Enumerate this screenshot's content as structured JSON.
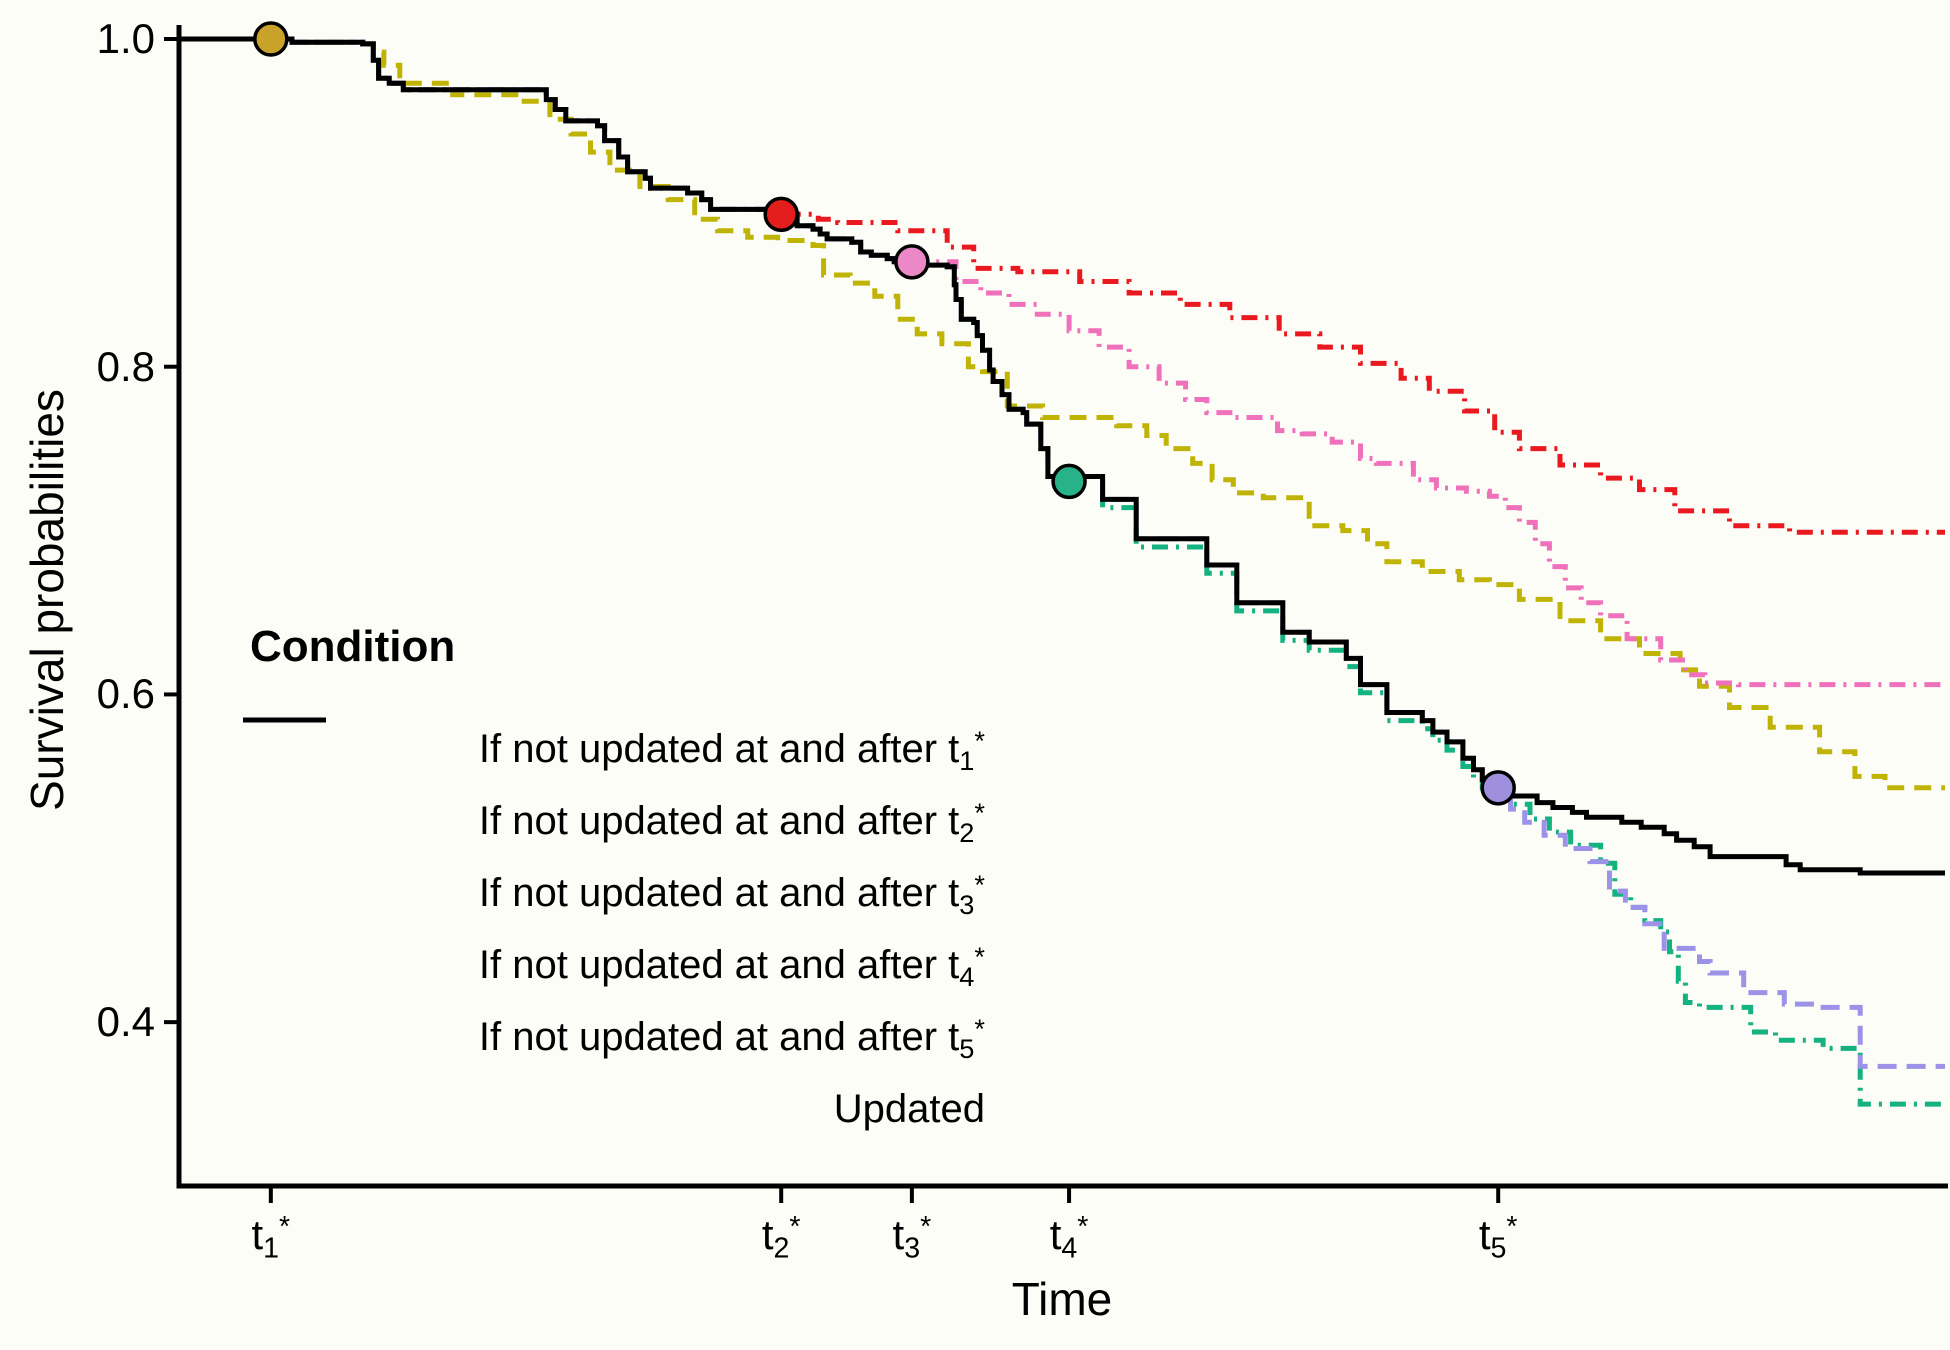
{
  "figure": {
    "background": "#fdfdf8",
    "text_color": "#000000"
  },
  "chart_data": {
    "type": "line",
    "subtype": "step-after-survival",
    "title": "",
    "xlabel": "Time",
    "ylabel": "Survival probabilities",
    "xlim": [
      0,
      1
    ],
    "ylim": [
      0.3,
      1.0
    ],
    "grid": false,
    "legend_position": "inside-left",
    "yticks": [
      {
        "value": 1.0,
        "label": "1.0"
      },
      {
        "value": 0.8,
        "label": "0.8"
      },
      {
        "value": 0.6,
        "label": "0.6"
      },
      {
        "value": 0.4,
        "label": "0.4"
      }
    ],
    "xticks": [
      {
        "x": 0.052,
        "base": "t",
        "sub": "1",
        "sup": "*"
      },
      {
        "x": 0.341,
        "base": "t",
        "sub": "2",
        "sup": "*"
      },
      {
        "x": 0.415,
        "base": "t",
        "sub": "3",
        "sup": "*"
      },
      {
        "x": 0.504,
        "base": "t",
        "sub": "4",
        "sup": "*"
      },
      {
        "x": 0.747,
        "base": "t",
        "sub": "5",
        "sup": "*"
      }
    ],
    "series": [
      {
        "name": "updated",
        "label": "Updated",
        "color": "#000000",
        "style": "solid",
        "z": 6,
        "points": [
          [
            0.0,
            1.0
          ],
          [
            0.064,
            0.998
          ],
          [
            0.104,
            0.997
          ],
          [
            0.11,
            0.987
          ],
          [
            0.113,
            0.976
          ],
          [
            0.119,
            0.973
          ],
          [
            0.127,
            0.969
          ],
          [
            0.208,
            0.963
          ],
          [
            0.213,
            0.957
          ],
          [
            0.219,
            0.95
          ],
          [
            0.237,
            0.947
          ],
          [
            0.241,
            0.938
          ],
          [
            0.249,
            0.928
          ],
          [
            0.254,
            0.919
          ],
          [
            0.264,
            0.915
          ],
          [
            0.267,
            0.909
          ],
          [
            0.288,
            0.906
          ],
          [
            0.296,
            0.902
          ],
          [
            0.301,
            0.896
          ],
          [
            0.335,
            0.893
          ],
          [
            0.35,
            0.886
          ],
          [
            0.359,
            0.884
          ],
          [
            0.363,
            0.881
          ],
          [
            0.367,
            0.878
          ],
          [
            0.381,
            0.876
          ],
          [
            0.386,
            0.87
          ],
          [
            0.392,
            0.868
          ],
          [
            0.401,
            0.866
          ],
          [
            0.405,
            0.864
          ],
          [
            0.421,
            0.862
          ],
          [
            0.435,
            0.861
          ],
          [
            0.439,
            0.85
          ],
          [
            0.44,
            0.841
          ],
          [
            0.443,
            0.829
          ],
          [
            0.45,
            0.827
          ],
          [
            0.452,
            0.819
          ],
          [
            0.455,
            0.81
          ],
          [
            0.459,
            0.798
          ],
          [
            0.461,
            0.791
          ],
          [
            0.466,
            0.783
          ],
          [
            0.47,
            0.774
          ],
          [
            0.478,
            0.772
          ],
          [
            0.48,
            0.765
          ],
          [
            0.488,
            0.75
          ],
          [
            0.492,
            0.733
          ],
          [
            0.523,
            0.719
          ],
          [
            0.542,
            0.695
          ],
          [
            0.582,
            0.679
          ],
          [
            0.599,
            0.656
          ],
          [
            0.625,
            0.638
          ],
          [
            0.64,
            0.632
          ],
          [
            0.661,
            0.622
          ],
          [
            0.669,
            0.606
          ],
          [
            0.684,
            0.589
          ],
          [
            0.704,
            0.584
          ],
          [
            0.71,
            0.577
          ],
          [
            0.718,
            0.571
          ],
          [
            0.727,
            0.561
          ],
          [
            0.733,
            0.554
          ],
          [
            0.738,
            0.548
          ],
          [
            0.745,
            0.543
          ],
          [
            0.754,
            0.538
          ],
          [
            0.769,
            0.534
          ],
          [
            0.778,
            0.531
          ],
          [
            0.789,
            0.528
          ],
          [
            0.797,
            0.525
          ],
          [
            0.817,
            0.522
          ],
          [
            0.828,
            0.519
          ],
          [
            0.841,
            0.515
          ],
          [
            0.848,
            0.511
          ],
          [
            0.858,
            0.507
          ],
          [
            0.867,
            0.501
          ],
          [
            0.91,
            0.496
          ],
          [
            0.918,
            0.493
          ],
          [
            0.952,
            0.491
          ],
          [
            1.0,
            0.491
          ]
        ]
      },
      {
        "name": "not_after_t1",
        "label_pre": "If not updated at and after t",
        "label_sub": "1",
        "label_sup": "*",
        "color": "#bfb304",
        "style": "dashed",
        "z": 1,
        "follow": "updated",
        "until": 0.108,
        "points": [
          [
            0.11,
            0.992
          ],
          [
            0.116,
            0.984
          ],
          [
            0.125,
            0.973
          ],
          [
            0.155,
            0.966
          ],
          [
            0.193,
            0.962
          ],
          [
            0.21,
            0.951
          ],
          [
            0.222,
            0.942
          ],
          [
            0.233,
            0.931
          ],
          [
            0.244,
            0.92
          ],
          [
            0.261,
            0.91
          ],
          [
            0.277,
            0.902
          ],
          [
            0.292,
            0.89
          ],
          [
            0.305,
            0.883
          ],
          [
            0.322,
            0.879
          ],
          [
            0.339,
            0.877
          ],
          [
            0.359,
            0.874
          ],
          [
            0.365,
            0.856
          ],
          [
            0.38,
            0.851
          ],
          [
            0.394,
            0.843
          ],
          [
            0.407,
            0.829
          ],
          [
            0.418,
            0.82
          ],
          [
            0.432,
            0.814
          ],
          [
            0.447,
            0.8
          ],
          [
            0.455,
            0.797
          ],
          [
            0.469,
            0.776
          ],
          [
            0.489,
            0.769
          ],
          [
            0.531,
            0.764
          ],
          [
            0.548,
            0.758
          ],
          [
            0.559,
            0.75
          ],
          [
            0.574,
            0.741
          ],
          [
            0.585,
            0.731
          ],
          [
            0.597,
            0.723
          ],
          [
            0.614,
            0.72
          ],
          [
            0.64,
            0.703
          ],
          [
            0.659,
            0.7
          ],
          [
            0.673,
            0.692
          ],
          [
            0.684,
            0.681
          ],
          [
            0.704,
            0.675
          ],
          [
            0.725,
            0.67
          ],
          [
            0.742,
            0.667
          ],
          [
            0.759,
            0.658
          ],
          [
            0.782,
            0.645
          ],
          [
            0.805,
            0.634
          ],
          [
            0.827,
            0.625
          ],
          [
            0.85,
            0.615
          ],
          [
            0.861,
            0.605
          ],
          [
            0.878,
            0.592
          ],
          [
            0.901,
            0.58
          ],
          [
            0.929,
            0.565
          ],
          [
            0.949,
            0.55
          ],
          [
            0.966,
            0.543
          ],
          [
            1.0,
            0.543
          ]
        ]
      },
      {
        "name": "not_after_t2",
        "label_pre": "If not updated at and after t",
        "label_sub": "2",
        "label_sup": "*",
        "color": "#e9191f",
        "style": "dotdash",
        "z": 2,
        "follow": "updated",
        "until": 0.345,
        "points": [
          [
            0.362,
            0.89
          ],
          [
            0.373,
            0.888
          ],
          [
            0.407,
            0.883
          ],
          [
            0.435,
            0.873
          ],
          [
            0.45,
            0.86
          ],
          [
            0.475,
            0.858
          ],
          [
            0.51,
            0.852
          ],
          [
            0.538,
            0.845
          ],
          [
            0.567,
            0.838
          ],
          [
            0.595,
            0.83
          ],
          [
            0.623,
            0.82
          ],
          [
            0.646,
            0.812
          ],
          [
            0.669,
            0.802
          ],
          [
            0.692,
            0.793
          ],
          [
            0.708,
            0.785
          ],
          [
            0.728,
            0.773
          ],
          [
            0.745,
            0.76
          ],
          [
            0.759,
            0.75
          ],
          [
            0.782,
            0.74
          ],
          [
            0.805,
            0.732
          ],
          [
            0.827,
            0.725
          ],
          [
            0.847,
            0.712
          ],
          [
            0.878,
            0.703
          ],
          [
            0.912,
            0.699
          ],
          [
            1.0,
            0.699
          ]
        ]
      },
      {
        "name": "not_after_t3",
        "label_pre": "If not updated at and after t",
        "label_sub": "3",
        "label_sup": "*",
        "color": "#ef70bb",
        "style": "dotdash",
        "z": 3,
        "follow": "updated",
        "until": 0.418,
        "points": [
          [
            0.44,
            0.852
          ],
          [
            0.454,
            0.845
          ],
          [
            0.47,
            0.838
          ],
          [
            0.486,
            0.832
          ],
          [
            0.504,
            0.822
          ],
          [
            0.521,
            0.812
          ],
          [
            0.538,
            0.8
          ],
          [
            0.555,
            0.79
          ],
          [
            0.57,
            0.78
          ],
          [
            0.582,
            0.772
          ],
          [
            0.597,
            0.769
          ],
          [
            0.622,
            0.761
          ],
          [
            0.636,
            0.759
          ],
          [
            0.653,
            0.754
          ],
          [
            0.669,
            0.744
          ],
          [
            0.678,
            0.741
          ],
          [
            0.699,
            0.731
          ],
          [
            0.712,
            0.726
          ],
          [
            0.729,
            0.724
          ],
          [
            0.742,
            0.721
          ],
          [
            0.751,
            0.714
          ],
          [
            0.759,
            0.705
          ],
          [
            0.768,
            0.692
          ],
          [
            0.776,
            0.678
          ],
          [
            0.785,
            0.665
          ],
          [
            0.794,
            0.656
          ],
          [
            0.805,
            0.648
          ],
          [
            0.82,
            0.634
          ],
          [
            0.839,
            0.621
          ],
          [
            0.853,
            0.612
          ],
          [
            0.864,
            0.607
          ],
          [
            0.883,
            0.606
          ],
          [
            1.0,
            0.606
          ]
        ]
      },
      {
        "name": "not_after_t4",
        "label_pre": "If not updated at and after t",
        "label_sub": "4",
        "label_sup": "*",
        "color": "#14b181",
        "style": "dotdash",
        "z": 4,
        "follow": "updated",
        "until": 0.508,
        "points": [
          [
            0.523,
            0.714
          ],
          [
            0.542,
            0.69
          ],
          [
            0.582,
            0.674
          ],
          [
            0.599,
            0.651
          ],
          [
            0.625,
            0.633
          ],
          [
            0.64,
            0.627
          ],
          [
            0.661,
            0.617
          ],
          [
            0.669,
            0.601
          ],
          [
            0.684,
            0.584
          ],
          [
            0.704,
            0.579
          ],
          [
            0.71,
            0.572
          ],
          [
            0.718,
            0.566
          ],
          [
            0.727,
            0.556
          ],
          [
            0.733,
            0.549
          ],
          [
            0.738,
            0.543
          ],
          [
            0.747,
            0.538
          ],
          [
            0.754,
            0.533
          ],
          [
            0.765,
            0.524
          ],
          [
            0.776,
            0.516
          ],
          [
            0.788,
            0.508
          ],
          [
            0.805,
            0.497
          ],
          [
            0.813,
            0.478
          ],
          [
            0.822,
            0.47
          ],
          [
            0.83,
            0.462
          ],
          [
            0.839,
            0.455
          ],
          [
            0.844,
            0.443
          ],
          [
            0.849,
            0.425
          ],
          [
            0.853,
            0.412
          ],
          [
            0.861,
            0.409
          ],
          [
            0.89,
            0.394
          ],
          [
            0.904,
            0.389
          ],
          [
            0.931,
            0.384
          ],
          [
            0.952,
            0.35
          ],
          [
            1.0,
            0.35
          ]
        ]
      },
      {
        "name": "not_after_t5",
        "label_pre": "If not updated at and after t",
        "label_sub": "5",
        "label_sup": "*",
        "color": "#9c92e8",
        "style": "longdash",
        "z": 5,
        "follow": "updated",
        "until": 0.75,
        "points": [
          [
            0.754,
            0.53
          ],
          [
            0.762,
            0.522
          ],
          [
            0.773,
            0.514
          ],
          [
            0.785,
            0.506
          ],
          [
            0.799,
            0.498
          ],
          [
            0.81,
            0.48
          ],
          [
            0.819,
            0.47
          ],
          [
            0.83,
            0.46
          ],
          [
            0.841,
            0.445
          ],
          [
            0.861,
            0.437
          ],
          [
            0.867,
            0.43
          ],
          [
            0.886,
            0.418
          ],
          [
            0.909,
            0.411
          ],
          [
            0.931,
            0.409
          ],
          [
            0.952,
            0.373
          ],
          [
            1.0,
            0.373
          ]
        ]
      }
    ],
    "markers": [
      {
        "x": 0.052,
        "value": 1.0,
        "fill": "#c9a329",
        "at": "t1"
      },
      {
        "x": 0.341,
        "value": 0.893,
        "fill": "#e41d1d",
        "at": "t2"
      },
      {
        "x": 0.415,
        "value": 0.864,
        "fill": "#ec87c8",
        "at": "t3"
      },
      {
        "x": 0.504,
        "value": 0.73,
        "fill": "#27b287",
        "at": "t4"
      },
      {
        "x": 0.747,
        "value": 0.543,
        "fill": "#9e90dc",
        "at": "t5"
      }
    ]
  },
  "legend": {
    "title": "Condition",
    "entries": [
      {
        "pre": "If not updated at and after t",
        "sub": "1",
        "sup": "*",
        "series": "not_after_t1"
      },
      {
        "pre": "If not updated at and after t",
        "sub": "2",
        "sup": "*",
        "series": "not_after_t2"
      },
      {
        "pre": "If not updated at and after t",
        "sub": "3",
        "sup": "*",
        "series": "not_after_t3"
      },
      {
        "pre": "If not updated at and after t",
        "sub": "4",
        "sup": "*",
        "series": "not_after_t4"
      },
      {
        "pre": "If not updated at and after t",
        "sub": "5",
        "sup": "*",
        "series": "not_after_t5"
      },
      {
        "pre": "Updated",
        "sub": "",
        "sup": "",
        "series": "updated"
      }
    ]
  }
}
